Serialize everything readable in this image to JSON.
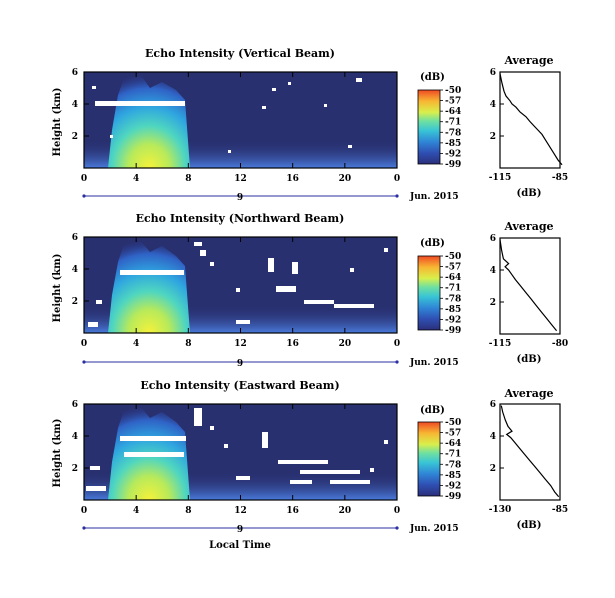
{
  "figure": {
    "xlabel": "Local Time",
    "date_label": "Jun. 2015",
    "unit_label": "(dB)",
    "avg_title": "Average",
    "avg_xlabel": "(dB)"
  },
  "chart_data": [
    {
      "type": "heatmap",
      "title": "Echo Intensity (Vertical Beam)",
      "xlabel": "",
      "ylabel": "Height (km)",
      "x_ticks": [
        "0",
        "4",
        "8",
        "12",
        "16",
        "20",
        "0"
      ],
      "xlim": [
        0,
        24
      ],
      "ylim": [
        0,
        6
      ],
      "y_ticks": [
        "2",
        "4",
        "6"
      ],
      "date_tick": "9",
      "colorbar": {
        "ticks": [
          "-50",
          "-57",
          "-64",
          "-71",
          "-78",
          "-85",
          "-92",
          "-99"
        ],
        "range": [
          -99,
          -50
        ]
      },
      "average_profile": {
        "title": "Average",
        "xlabel": "(dB)",
        "x_ticks": [
          "-115",
          "-85"
        ],
        "xlim": [
          -115,
          -85
        ],
        "y_ticks": [
          "2",
          "4",
          "6"
        ],
        "ylim": [
          0,
          6
        ],
        "points": [
          [
            -84,
            0.2
          ],
          [
            -86,
            0.5
          ],
          [
            -88,
            0.9
          ],
          [
            -90,
            1.3
          ],
          [
            -92,
            1.7
          ],
          [
            -94,
            2.1
          ],
          [
            -97,
            2.5
          ],
          [
            -100,
            2.9
          ],
          [
            -102,
            3.2
          ],
          [
            -105,
            3.5
          ],
          [
            -107,
            3.8
          ],
          [
            -109,
            4.0
          ],
          [
            -110,
            4.2
          ],
          [
            -112,
            4.5
          ],
          [
            -113,
            4.8
          ],
          [
            -114,
            5.3
          ],
          [
            -115,
            5.9
          ]
        ]
      }
    },
    {
      "type": "heatmap",
      "title": "Echo Intensity (Northward Beam)",
      "xlabel": "",
      "ylabel": "Height (km)",
      "x_ticks": [
        "0",
        "4",
        "8",
        "12",
        "16",
        "20",
        "0"
      ],
      "xlim": [
        0,
        24
      ],
      "ylim": [
        0,
        6
      ],
      "y_ticks": [
        "2",
        "4",
        "6"
      ],
      "date_tick": "9",
      "colorbar": {
        "ticks": [
          "-50",
          "-57",
          "-64",
          "-71",
          "-78",
          "-85",
          "-92",
          "-99"
        ],
        "range": [
          -99,
          -50
        ]
      },
      "average_profile": {
        "title": "Average",
        "xlabel": "(dB)",
        "x_ticks": [
          "-115",
          "-80"
        ],
        "xlim": [
          -115,
          -80
        ],
        "y_ticks": [
          "2",
          "4",
          "6"
        ],
        "ylim": [
          0,
          6
        ],
        "points": [
          [
            -82,
            0.2
          ],
          [
            -85,
            0.6
          ],
          [
            -88,
            1.0
          ],
          [
            -91,
            1.4
          ],
          [
            -94,
            1.8
          ],
          [
            -97,
            2.2
          ],
          [
            -100,
            2.6
          ],
          [
            -103,
            3.0
          ],
          [
            -106,
            3.4
          ],
          [
            -108,
            3.7
          ],
          [
            -110,
            4.0
          ],
          [
            -112,
            4.2
          ],
          [
            -110,
            4.4
          ],
          [
            -113,
            4.7
          ],
          [
            -114,
            5.2
          ],
          [
            -115,
            5.9
          ]
        ]
      }
    },
    {
      "type": "heatmap",
      "title": "Echo Intensity (Eastward Beam)",
      "xlabel": "Local Time",
      "ylabel": "Height (km)",
      "x_ticks": [
        "0",
        "4",
        "8",
        "12",
        "16",
        "20",
        "0"
      ],
      "xlim": [
        0,
        24
      ],
      "ylim": [
        0,
        6
      ],
      "y_ticks": [
        "2",
        "4",
        "6"
      ],
      "date_tick": "9",
      "colorbar": {
        "ticks": [
          "-50",
          "-57",
          "-64",
          "-71",
          "-78",
          "-85",
          "-92",
          "-99"
        ],
        "range": [
          -99,
          -50
        ]
      },
      "average_profile": {
        "title": "Average",
        "xlabel": "(dB)",
        "x_ticks": [
          "-130",
          "-85"
        ],
        "xlim": [
          -130,
          -85
        ],
        "y_ticks": [
          "2",
          "4",
          "6"
        ],
        "ylim": [
          0,
          6
        ],
        "points": [
          [
            -86,
            0.2
          ],
          [
            -89,
            0.5
          ],
          [
            -92,
            0.9
          ],
          [
            -96,
            1.3
          ],
          [
            -100,
            1.7
          ],
          [
            -104,
            2.1
          ],
          [
            -108,
            2.5
          ],
          [
            -112,
            2.9
          ],
          [
            -116,
            3.3
          ],
          [
            -119,
            3.6
          ],
          [
            -122,
            3.9
          ],
          [
            -125,
            4.1
          ],
          [
            -121,
            4.3
          ],
          [
            -124,
            4.6
          ],
          [
            -126,
            5.0
          ],
          [
            -128,
            5.5
          ],
          [
            -129,
            5.9
          ]
        ]
      }
    }
  ]
}
